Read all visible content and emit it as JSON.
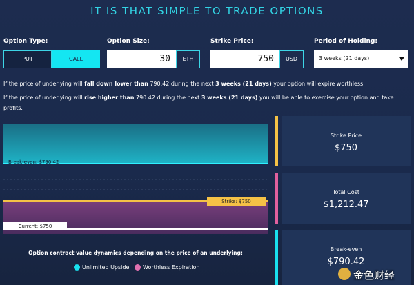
{
  "title": "IT IS THAT SIMPLE TO TRADE OPTIONS",
  "form": {
    "option_type": {
      "label": "Option Type:",
      "options": [
        "PUT",
        "CALL"
      ]
    },
    "option_size": {
      "label": "Option Size:",
      "value": "30",
      "unit": "ETH"
    },
    "strike_price": {
      "label": "Strike Price:",
      "value": "750",
      "unit": "USD"
    },
    "period": {
      "label": "Period of Holding:",
      "value": "3 weeks (21 days)"
    }
  },
  "messages": [
    [
      "If the price of underlying will ",
      "fall down lower than",
      " 790.42 during the next ",
      "3 weeks (21 days)",
      " your option will expire worthless."
    ],
    [
      "If the price of underlying will ",
      "rise higher than",
      " 790.42 during the next ",
      "3 weeks (21 days)",
      " you will be able to exercise your option and take profits."
    ]
  ],
  "chart": {
    "break_even_label": "Break-even: $790.42",
    "strike_label": "Strike: $750",
    "current_label": "Current: $750",
    "caption": "Option contract value dynamics depending on the price of an underlying:",
    "legend": [
      "Unlimited Upside",
      "Worthless Expiration"
    ]
  },
  "cards": [
    {
      "label": "Strike Price",
      "value": "$750"
    },
    {
      "label": "Total Cost",
      "value": "$1,212.47"
    },
    {
      "label": "Break-even",
      "value": "$790.42"
    }
  ],
  "watermark": "金色财经"
}
